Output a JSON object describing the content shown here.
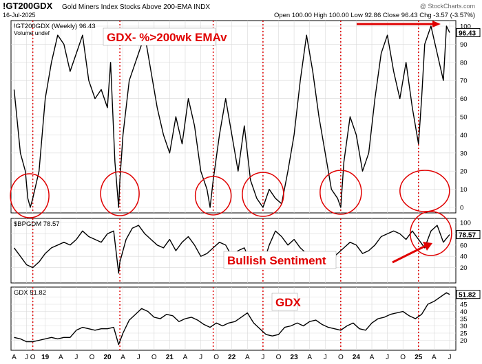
{
  "header": {
    "symbol": "!GT200GDX",
    "description": "Gold Miners Index Stocks Above 200-EMA  INDX",
    "date": "16-Jul-2025",
    "source": "@ StockCharts.com",
    "ohlc": "Open 100.00   High 100.00   Low 92.86   Close 96.43   Chg -3.57 (-3.57%)"
  },
  "colors": {
    "line": "#000000",
    "grid": "#d9d9d9",
    "marker": "#e00000",
    "annotation": "#e00000",
    "label_box_bg": "#ffffff"
  },
  "chart_data": [
    {
      "type": "line",
      "legend": "!GT200GDX (Weekly) 96.43",
      "sublegend": "Volume undef",
      "annotation": "GDX- %>200wk EMAv",
      "last_value": "96.43",
      "ylim": [
        0,
        100
      ],
      "yticks": [
        "0",
        "10",
        "20",
        "30",
        "40",
        "50",
        "60",
        "70",
        "80",
        "90",
        "100"
      ],
      "x": [
        2018.5,
        2018.6,
        2018.68,
        2018.72,
        2018.76,
        2018.8,
        2018.9,
        2019.0,
        2019.1,
        2019.2,
        2019.3,
        2019.4,
        2019.5,
        2019.6,
        2019.7,
        2019.8,
        2019.9,
        2020.0,
        2020.05,
        2020.12,
        2020.18,
        2020.2,
        2020.25,
        2020.35,
        2020.5,
        2020.6,
        2020.7,
        2020.8,
        2020.9,
        2021.0,
        2021.1,
        2021.2,
        2021.3,
        2021.4,
        2021.5,
        2021.6,
        2021.65,
        2021.7,
        2021.8,
        2021.9,
        2022.0,
        2022.1,
        2022.2,
        2022.3,
        2022.4,
        2022.5,
        2022.6,
        2022.7,
        2022.8,
        2022.9,
        2023.0,
        2023.1,
        2023.2,
        2023.3,
        2023.4,
        2023.5,
        2023.6,
        2023.7,
        2023.75,
        2023.8,
        2023.9,
        2024.0,
        2024.1,
        2024.2,
        2024.3,
        2024.4,
        2024.5,
        2024.6,
        2024.7,
        2024.8,
        2024.9,
        2025.0,
        2025.05,
        2025.1,
        2025.2,
        2025.3,
        2025.4,
        2025.45,
        2025.5
      ],
      "y": [
        65,
        30,
        20,
        5,
        0,
        5,
        20,
        60,
        80,
        95,
        90,
        75,
        85,
        95,
        70,
        60,
        65,
        55,
        80,
        25,
        0,
        15,
        40,
        70,
        85,
        95,
        75,
        55,
        40,
        30,
        50,
        35,
        60,
        45,
        20,
        10,
        0,
        15,
        40,
        60,
        40,
        20,
        45,
        15,
        5,
        0,
        10,
        5,
        2,
        20,
        40,
        70,
        95,
        75,
        50,
        30,
        10,
        5,
        0,
        25,
        50,
        40,
        20,
        30,
        60,
        85,
        95,
        75,
        60,
        80,
        55,
        35,
        60,
        90,
        100,
        85,
        70,
        100,
        96.43
      ]
    },
    {
      "type": "line",
      "legend": "$BPGDM 78.57",
      "annotation": "Bullish Sentiment",
      "last_value": "78.57",
      "ylim": [
        0,
        100
      ],
      "yticks": [
        "20",
        "40",
        "60",
        "80",
        "100"
      ],
      "x": [
        2018.5,
        2018.6,
        2018.7,
        2018.8,
        2018.9,
        2019.0,
        2019.1,
        2019.2,
        2019.3,
        2019.4,
        2019.5,
        2019.6,
        2019.7,
        2019.8,
        2019.9,
        2020.0,
        2020.1,
        2020.18,
        2020.2,
        2020.3,
        2020.4,
        2020.5,
        2020.6,
        2020.7,
        2020.8,
        2020.9,
        2021.0,
        2021.1,
        2021.2,
        2021.3,
        2021.4,
        2021.5,
        2021.6,
        2021.7,
        2021.8,
        2021.9,
        2022.0,
        2022.1,
        2022.2,
        2022.3,
        2022.4,
        2022.5,
        2022.6,
        2022.7,
        2022.8,
        2022.9,
        2023.0,
        2023.1,
        2023.2,
        2023.3,
        2023.4,
        2023.5,
        2023.6,
        2023.7,
        2023.8,
        2023.9,
        2024.0,
        2024.1,
        2024.2,
        2024.3,
        2024.4,
        2024.5,
        2024.6,
        2024.7,
        2024.8,
        2024.9,
        2025.0,
        2025.1,
        2025.2,
        2025.3,
        2025.4,
        2025.5
      ],
      "y": [
        55,
        40,
        25,
        20,
        30,
        45,
        55,
        60,
        65,
        60,
        70,
        85,
        75,
        70,
        65,
        80,
        85,
        10,
        30,
        70,
        90,
        95,
        80,
        70,
        60,
        55,
        70,
        50,
        65,
        75,
        60,
        40,
        45,
        55,
        65,
        60,
        40,
        50,
        55,
        30,
        20,
        25,
        60,
        85,
        75,
        60,
        70,
        55,
        45,
        30,
        25,
        20,
        35,
        45,
        55,
        65,
        60,
        45,
        50,
        60,
        75,
        80,
        85,
        80,
        70,
        85,
        70,
        55,
        85,
        95,
        65,
        78.57
      ]
    },
    {
      "type": "line",
      "legend": "GDX 51.82",
      "annotation": "GDX",
      "last_value": "51.82",
      "ylim": [
        15,
        55
      ],
      "yticks": [
        "20",
        "25",
        "30",
        "35",
        "40",
        "45",
        "50"
      ],
      "x": [
        2018.5,
        2018.6,
        2018.7,
        2018.8,
        2018.9,
        2019.0,
        2019.1,
        2019.2,
        2019.3,
        2019.4,
        2019.5,
        2019.6,
        2019.7,
        2019.8,
        2019.9,
        2020.0,
        2020.1,
        2020.18,
        2020.25,
        2020.35,
        2020.45,
        2020.55,
        2020.65,
        2020.75,
        2020.85,
        2020.95,
        2021.05,
        2021.15,
        2021.25,
        2021.35,
        2021.45,
        2021.55,
        2021.65,
        2021.75,
        2021.85,
        2021.95,
        2022.05,
        2022.15,
        2022.25,
        2022.35,
        2022.45,
        2022.55,
        2022.65,
        2022.75,
        2022.85,
        2022.95,
        2023.05,
        2023.15,
        2023.25,
        2023.35,
        2023.45,
        2023.55,
        2023.65,
        2023.75,
        2023.85,
        2023.95,
        2024.05,
        2024.15,
        2024.25,
        2024.35,
        2024.45,
        2024.55,
        2024.65,
        2024.75,
        2024.85,
        2024.95,
        2025.05,
        2025.15,
        2025.25,
        2025.35,
        2025.45,
        2025.5
      ],
      "y": [
        22,
        21,
        19,
        19,
        20,
        21,
        22,
        21,
        22,
        22,
        27,
        29,
        28,
        27,
        28,
        28,
        29,
        17,
        25,
        34,
        38,
        42,
        40,
        36,
        35,
        38,
        37,
        33,
        35,
        36,
        34,
        31,
        29,
        32,
        30,
        32,
        33,
        36,
        39,
        32,
        28,
        24,
        23,
        24,
        29,
        30,
        32,
        30,
        33,
        34,
        31,
        29,
        28,
        27,
        30,
        32,
        28,
        27,
        32,
        35,
        36,
        38,
        39,
        40,
        37,
        35,
        38,
        45,
        47,
        50,
        53,
        51.82
      ]
    }
  ],
  "x_axis": {
    "labels": [
      {
        "t": 2018.5,
        "text": "A"
      },
      {
        "t": 2018.7,
        "text": "J"
      },
      {
        "t": 2018.8,
        "text": "O"
      },
      {
        "t": 2019.0,
        "text": "19"
      },
      {
        "t": 2019.25,
        "text": "A"
      },
      {
        "t": 2019.5,
        "text": "J"
      },
      {
        "t": 2019.75,
        "text": "O"
      },
      {
        "t": 2020.0,
        "text": "20"
      },
      {
        "t": 2020.25,
        "text": "A"
      },
      {
        "t": 2020.5,
        "text": "J"
      },
      {
        "t": 2020.75,
        "text": "O"
      },
      {
        "t": 2021.0,
        "text": "21"
      },
      {
        "t": 2021.25,
        "text": "A"
      },
      {
        "t": 2021.5,
        "text": "J"
      },
      {
        "t": 2021.75,
        "text": "O"
      },
      {
        "t": 2022.0,
        "text": "22"
      },
      {
        "t": 2022.25,
        "text": "A"
      },
      {
        "t": 2022.5,
        "text": "J"
      },
      {
        "t": 2022.75,
        "text": "O"
      },
      {
        "t": 2023.0,
        "text": "23"
      },
      {
        "t": 2023.25,
        "text": "A"
      },
      {
        "t": 2023.5,
        "text": "J"
      },
      {
        "t": 2023.75,
        "text": "O"
      },
      {
        "t": 2024.0,
        "text": "24"
      },
      {
        "t": 2024.25,
        "text": "A"
      },
      {
        "t": 2024.5,
        "text": "J"
      },
      {
        "t": 2024.75,
        "text": "O"
      },
      {
        "t": 2025.0,
        "text": "25"
      },
      {
        "t": 2025.25,
        "text": "A"
      },
      {
        "t": 2025.5,
        "text": "J"
      }
    ],
    "markers": [
      2018.8,
      2020.2,
      2021.7,
      2022.5,
      2023.75,
      2025.0
    ]
  }
}
